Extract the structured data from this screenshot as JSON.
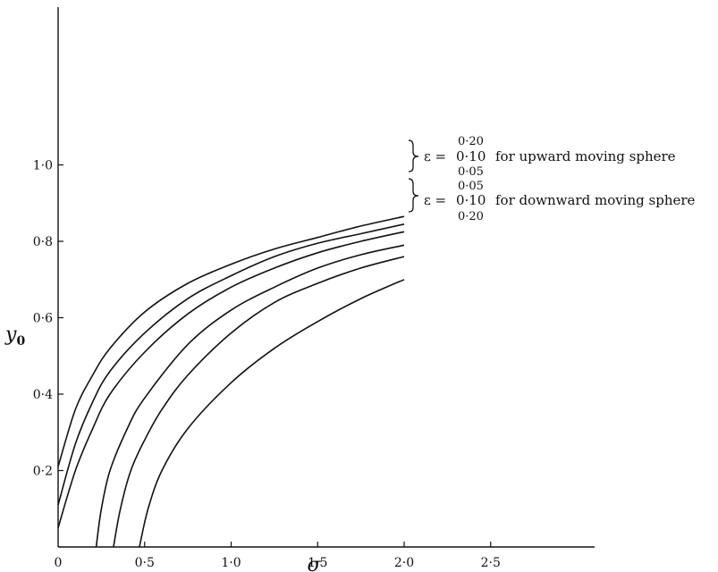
{
  "chart_data": {
    "type": "line",
    "title": "",
    "xlabel": "σ",
    "ylabel_main": "y",
    "ylabel_sub": "0",
    "xlim": [
      0,
      3.0
    ],
    "ylim": [
      0,
      1.2
    ],
    "xticks": [
      {
        "value": 0,
        "label": "0"
      },
      {
        "value": 0.5,
        "label": "0·5"
      },
      {
        "value": 1.0,
        "label": "1·0"
      },
      {
        "value": 1.5,
        "label": "1·5"
      },
      {
        "value": 2.0,
        "label": "2·0"
      },
      {
        "value": 2.5,
        "label": "2·5"
      }
    ],
    "yticks": [
      {
        "value": 0.2,
        "label": "0·2"
      },
      {
        "value": 0.4,
        "label": "0·4"
      },
      {
        "value": 0.6,
        "label": "0·6"
      },
      {
        "value": 0.8,
        "label": "0·8"
      },
      {
        "value": 1.0,
        "label": "1·0"
      }
    ],
    "grid": false,
    "series": [
      {
        "values": [
          [
            0,
            0.21
          ],
          [
            0.1,
            0.36
          ],
          [
            0.2,
            0.45
          ],
          [
            0.3,
            0.52
          ],
          [
            0.5,
            0.615
          ],
          [
            0.75,
            0.69
          ],
          [
            1.0,
            0.74
          ],
          [
            1.25,
            0.78
          ],
          [
            1.5,
            0.81
          ],
          [
            1.75,
            0.84
          ],
          [
            2.0,
            0.865
          ]
        ]
      },
      {
        "values": [
          [
            0,
            0.11
          ],
          [
            0.1,
            0.27
          ],
          [
            0.2,
            0.38
          ],
          [
            0.3,
            0.46
          ],
          [
            0.5,
            0.56
          ],
          [
            0.75,
            0.65
          ],
          [
            1.0,
            0.71
          ],
          [
            1.25,
            0.76
          ],
          [
            1.5,
            0.795
          ],
          [
            1.75,
            0.82
          ],
          [
            2.0,
            0.845
          ]
        ]
      },
      {
        "values": [
          [
            0,
            0.05
          ],
          [
            0.1,
            0.2
          ],
          [
            0.2,
            0.31
          ],
          [
            0.3,
            0.4
          ],
          [
            0.5,
            0.51
          ],
          [
            0.75,
            0.61
          ],
          [
            1.0,
            0.68
          ],
          [
            1.25,
            0.73
          ],
          [
            1.5,
            0.77
          ],
          [
            1.75,
            0.8
          ],
          [
            2.0,
            0.825
          ]
        ]
      },
      {
        "values": [
          [
            0.22,
            0.0
          ],
          [
            0.25,
            0.1
          ],
          [
            0.3,
            0.2
          ],
          [
            0.4,
            0.31
          ],
          [
            0.5,
            0.39
          ],
          [
            0.75,
            0.53
          ],
          [
            1.0,
            0.62
          ],
          [
            1.25,
            0.68
          ],
          [
            1.5,
            0.73
          ],
          [
            1.75,
            0.765
          ],
          [
            2.0,
            0.79
          ]
        ]
      },
      {
        "values": [
          [
            0.32,
            0.0
          ],
          [
            0.36,
            0.1
          ],
          [
            0.42,
            0.2
          ],
          [
            0.5,
            0.28
          ],
          [
            0.6,
            0.36
          ],
          [
            0.75,
            0.45
          ],
          [
            1.0,
            0.56
          ],
          [
            1.25,
            0.64
          ],
          [
            1.5,
            0.69
          ],
          [
            1.75,
            0.73
          ],
          [
            2.0,
            0.76
          ]
        ]
      },
      {
        "values": [
          [
            0.47,
            0.0
          ],
          [
            0.52,
            0.1
          ],
          [
            0.6,
            0.2
          ],
          [
            0.75,
            0.31
          ],
          [
            1.0,
            0.43
          ],
          [
            1.25,
            0.52
          ],
          [
            1.5,
            0.59
          ],
          [
            1.75,
            0.65
          ],
          [
            2.0,
            0.7
          ]
        ]
      }
    ],
    "annotations": {
      "upward": {
        "eps_symbol": "ε =",
        "values": [
          "0·20",
          "0·10",
          "0·05"
        ],
        "text": "for upward moving sphere"
      },
      "downward": {
        "eps_symbol": "ε =",
        "values": [
          "0·05",
          "0·10",
          "0·20"
        ],
        "text": "for downward moving sphere"
      }
    }
  }
}
